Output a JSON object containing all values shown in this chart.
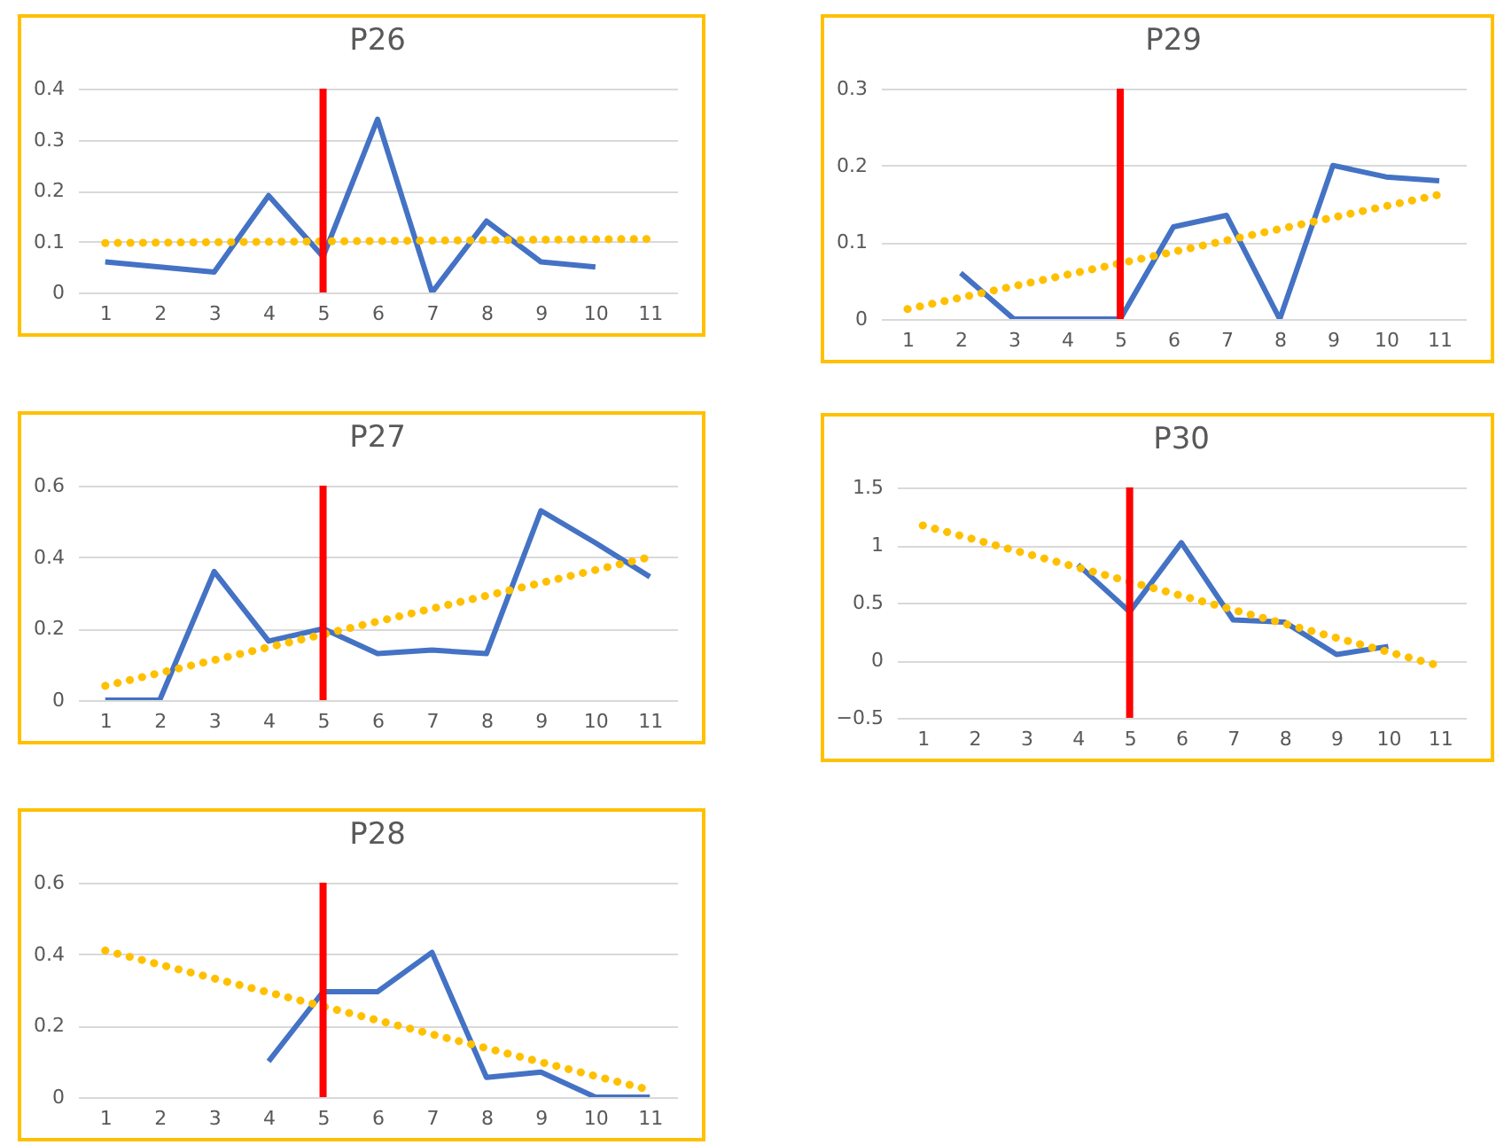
{
  "chart_data": [
    {
      "type": "line",
      "title": "P26",
      "xlim": [
        0.5,
        11.5
      ],
      "xticks": [
        1,
        2,
        3,
        4,
        5,
        6,
        7,
        8,
        9,
        10,
        11
      ],
      "ylim": [
        0,
        0.4
      ],
      "yticks": [
        0,
        0.1,
        0.2,
        0.3,
        0.4
      ],
      "grid": "y",
      "series": [
        {
          "color": "#4472c4",
          "x": [
            1,
            2,
            3,
            4,
            5,
            6,
            7,
            8,
            9,
            10
          ],
          "values": [
            0.06,
            0.05,
            0.04,
            0.19,
            0.07,
            0.34,
            0,
            0.14,
            0.06,
            0.05
          ]
        },
        {
          "type": "line",
          "color": "#ffc000",
          "line_style": "dotted",
          "x": [
            1,
            11
          ],
          "values": [
            0.097,
            0.105
          ]
        }
      ],
      "ref_lines": [
        {
          "axis": "x",
          "value": 5,
          "color": "#ff0000"
        }
      ]
    },
    {
      "type": "line",
      "title": "P29",
      "xlim": [
        0.5,
        11.5
      ],
      "xticks": [
        1,
        2,
        3,
        4,
        5,
        6,
        7,
        8,
        9,
        10,
        11
      ],
      "ylim": [
        0,
        0.3
      ],
      "yticks": [
        0,
        0.1,
        0.2,
        0.3
      ],
      "grid": "y",
      "series": [
        {
          "color": "#4472c4",
          "x": [
            2,
            3,
            4,
            5,
            6,
            7,
            8,
            9,
            10,
            11
          ],
          "values": [
            0.06,
            0,
            0,
            0,
            0.12,
            0.135,
            0,
            0.2,
            0.185,
            0.18
          ]
        },
        {
          "type": "line",
          "color": "#ffc000",
          "line_style": "dotted",
          "x": [
            1,
            11
          ],
          "values": [
            0.013,
            0.162
          ]
        }
      ],
      "ref_lines": [
        {
          "axis": "x",
          "value": 5,
          "color": "#ff0000"
        }
      ]
    },
    {
      "type": "line",
      "title": "P27",
      "xlim": [
        0.5,
        11.5
      ],
      "xticks": [
        1,
        2,
        3,
        4,
        5,
        6,
        7,
        8,
        9,
        10,
        11
      ],
      "ylim": [
        0,
        0.6
      ],
      "yticks": [
        0,
        0.2,
        0.4,
        0.6
      ],
      "grid": "y",
      "series": [
        {
          "color": "#4472c4",
          "x": [
            1,
            2,
            3,
            4,
            5,
            6,
            7,
            8,
            9,
            10,
            11
          ],
          "values": [
            0,
            0,
            0.36,
            0.165,
            0.2,
            0.13,
            0.14,
            0.13,
            0.53,
            0.44,
            0.345
          ]
        },
        {
          "type": "line",
          "color": "#ffc000",
          "line_style": "dotted",
          "x": [
            1,
            11
          ],
          "values": [
            0.04,
            0.4
          ]
        }
      ],
      "ref_lines": [
        {
          "axis": "x",
          "value": 5,
          "color": "#ff0000"
        }
      ]
    },
    {
      "type": "line",
      "title": "P30",
      "xlim": [
        0.5,
        11.5
      ],
      "xticks": [
        1,
        2,
        3,
        4,
        5,
        6,
        7,
        8,
        9,
        10,
        11
      ],
      "ylim": [
        -0.5,
        1.5
      ],
      "yticks": [
        -0.5,
        0,
        0.5,
        1,
        1.5
      ],
      "grid": "y",
      "series": [
        {
          "color": "#4472c4",
          "x": [
            4,
            5,
            6,
            7,
            8,
            9,
            10
          ],
          "values": [
            0.83,
            0.42,
            1.02,
            0.35,
            0.33,
            0.05,
            0.12
          ]
        },
        {
          "type": "line",
          "color": "#ffc000",
          "line_style": "dotted",
          "x": [
            1,
            11
          ],
          "values": [
            1.17,
            -0.05
          ]
        }
      ],
      "ref_lines": [
        {
          "axis": "x",
          "value": 5,
          "color": "#ff0000"
        }
      ]
    },
    {
      "type": "line",
      "title": "P28",
      "xlim": [
        0.5,
        11.5
      ],
      "xticks": [
        1,
        2,
        3,
        4,
        5,
        6,
        7,
        8,
        9,
        10,
        11
      ],
      "ylim": [
        0,
        0.6
      ],
      "yticks": [
        0,
        0.2,
        0.4,
        0.6
      ],
      "grid": "y",
      "series": [
        {
          "color": "#4472c4",
          "x": [
            4,
            5,
            6,
            7,
            8,
            9,
            10,
            11
          ],
          "values": [
            0.1,
            0.295,
            0.295,
            0.405,
            0.055,
            0.07,
            0,
            0
          ]
        },
        {
          "type": "line",
          "color": "#ffc000",
          "line_style": "dotted",
          "x": [
            1,
            11
          ],
          "values": [
            0.41,
            0.02
          ]
        }
      ],
      "ref_lines": [
        {
          "axis": "x",
          "value": 5,
          "color": "#ff0000"
        }
      ]
    }
  ]
}
